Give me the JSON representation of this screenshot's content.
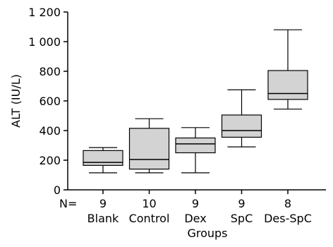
{
  "chart_data": {
    "type": "boxplot",
    "ylabel": "ALT (IU/L)",
    "xlabel": "Groups",
    "ylim": [
      0,
      1200
    ],
    "yticks": [
      {
        "value": 0,
        "label": "0"
      },
      {
        "value": 200,
        "label": "200"
      },
      {
        "value": 400,
        "label": "400"
      },
      {
        "value": 600,
        "label": "600"
      },
      {
        "value": 800,
        "label": "800"
      },
      {
        "value": 1000,
        "label": "1 000"
      },
      {
        "value": 1200,
        "label": "1 200"
      }
    ],
    "n_label": "N=",
    "groups": [
      {
        "name": "Blank",
        "n": "9",
        "min": 115,
        "q1": 165,
        "median": 185,
        "q3": 265,
        "max": 285
      },
      {
        "name": "Control",
        "n": "10",
        "min": 115,
        "q1": 140,
        "median": 205,
        "q3": 415,
        "max": 480
      },
      {
        "name": "Dex",
        "n": "9",
        "min": 115,
        "q1": 250,
        "median": 310,
        "q3": 350,
        "max": 420
      },
      {
        "name": "SpC",
        "n": "9",
        "min": 290,
        "q1": 355,
        "median": 400,
        "q3": 505,
        "max": 675
      },
      {
        "name": "Des-SpC",
        "n": "8",
        "min": 545,
        "q1": 610,
        "median": 650,
        "q3": 805,
        "max": 1080
      }
    ],
    "colors": {
      "box_fill": "#d3d3d3",
      "stroke": "#000000"
    }
  }
}
